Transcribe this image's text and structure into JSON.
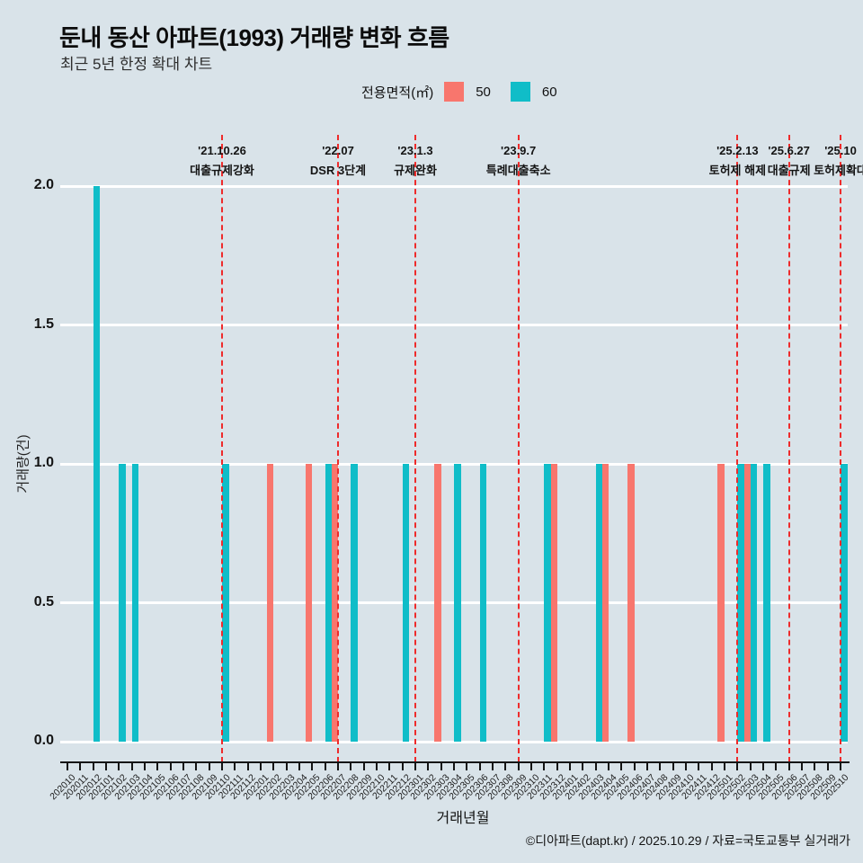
{
  "header": {
    "title": "둔내 동산 아파트(1993) 거래량 변화 흐름",
    "subtitle": "최근 5년 한정 확대 차트"
  },
  "legend": {
    "label": "전용면적(㎡)",
    "items": [
      {
        "label": "50",
        "color": "#F8766D"
      },
      {
        "label": "60",
        "color": "#10BDC8"
      }
    ]
  },
  "chart_data": {
    "type": "bar",
    "title": "둔내 동산 아파트(1993) 거래량 변화 흐름",
    "xlabel": "거래년월",
    "ylabel": "거래량(건)",
    "ylim": [
      0,
      2
    ],
    "yticks": [
      "0.0",
      "0.5",
      "1.0",
      "1.5",
      "2.0"
    ],
    "grid": true,
    "legend_position": "top",
    "categories": [
      "202010",
      "202011",
      "202012",
      "202101",
      "202102",
      "202103",
      "202104",
      "202105",
      "202106",
      "202107",
      "202108",
      "202109",
      "202110",
      "202111",
      "202112",
      "202201",
      "202202",
      "202203",
      "202204",
      "202205",
      "202206",
      "202207",
      "202208",
      "202209",
      "202210",
      "202211",
      "202212",
      "202301",
      "202302",
      "202303",
      "202304",
      "202305",
      "202306",
      "202307",
      "202308",
      "202309",
      "202310",
      "202311",
      "202312",
      "202401",
      "202402",
      "202403",
      "202404",
      "202405",
      "202406",
      "202407",
      "202408",
      "202409",
      "202410",
      "202411",
      "202412",
      "202501",
      "202502",
      "202503",
      "202504",
      "202505",
      "202506",
      "202507",
      "202508",
      "202509",
      "202510"
    ],
    "series": [
      {
        "name": "50",
        "color": "#F8766D",
        "values": {
          "202202": 1,
          "202205": 1,
          "202207": 1,
          "202303": 1,
          "202312": 1,
          "202404": 1,
          "202406": 1,
          "202501": 1,
          "202503": 1
        }
      },
      {
        "name": "60",
        "color": "#10BDC8",
        "values": {
          "202012": 2,
          "202102": 1,
          "202103": 1,
          "202110": 1,
          "202206": 1,
          "202208": 1,
          "202212": 1,
          "202304": 1,
          "202306": 1,
          "202311": 1,
          "202403": 1,
          "202502": 1,
          "202503": 1,
          "202504": 1,
          "202510": 1
        }
      }
    ],
    "event_line_color": "#ee2b2b",
    "annotations": [
      {
        "month": "202110",
        "date": "'21.10.26",
        "label": "대출규제강화"
      },
      {
        "month": "202207",
        "date": "'22.07",
        "label": "DSR 3단계"
      },
      {
        "month": "202301",
        "date": "'23.1.3",
        "label": "규제완화"
      },
      {
        "month": "202309",
        "date": "'23.9.7",
        "label": "특례대출축소"
      },
      {
        "month": "202502",
        "date": "'25.2.13",
        "label": "토허제 해제"
      },
      {
        "month": "202506",
        "date": "'25.6.27",
        "label": "대출규제"
      },
      {
        "month": "202510",
        "date": "'25.10",
        "label": "토허제확대"
      }
    ]
  },
  "footer": {
    "credit": "©디아파트(dapt.kr) / 2025.10.29 / 자료=국토교통부 실거래가"
  }
}
